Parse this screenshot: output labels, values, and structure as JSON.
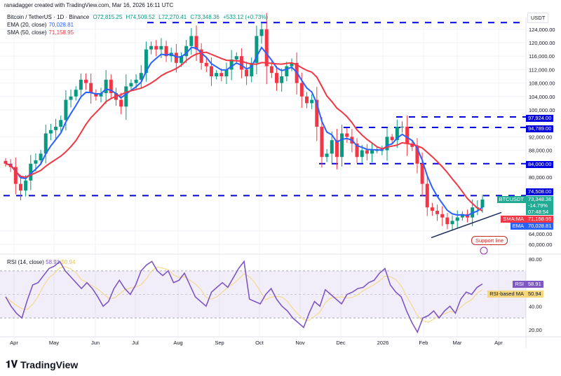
{
  "credit": "ranadagger created with TradingView.com, Mar 16, 2026 16:11 UTC",
  "symbol": {
    "title": "Bitcoin / TetherUS · 1D · Binance",
    "open": "O72,815.25",
    "high": "H74,509.52",
    "low": "L72,270.41",
    "close": "C73,348.36",
    "change": "+533.12 (+0.73%)"
  },
  "indicators": {
    "ema_label": "EMA (20, close)",
    "ema_value": "70,028.81",
    "sma_label": "SMA (50, close)",
    "sma_value": "71,158.95",
    "rsi_label": "RSI (14, close)",
    "rsi_value": "58.91",
    "rsi_ma_value": "50.94"
  },
  "axis": {
    "currency": "USDT",
    "price_labels": [
      "124,000.00",
      "120,000.00",
      "116,000.00",
      "112,000.00",
      "108,000.00",
      "104,000.00",
      "100,000.00",
      "92,000.00",
      "88,000.00",
      "80,000.00",
      "64,000.00",
      "60,000.00"
    ],
    "rsi_labels": [
      "80.00",
      "40.00",
      "20.00"
    ],
    "time_labels": [
      "Apr",
      "May",
      "Jun",
      "Jul",
      "Aug",
      "Sep",
      "Oct",
      "Nov",
      "Dec",
      "2026",
      "Feb",
      "Mar",
      "Apr"
    ]
  },
  "tags": {
    "l97924": "97,924.00",
    "l94789": "94,789.00",
    "l84000": "84,000.00",
    "l74508": "74,508.00",
    "ticker": "BTCUSDT",
    "price": "73,348.36",
    "pct": "-14.79%",
    "countdown": "07:48:54",
    "sma_tag": "SMA:MA",
    "sma_tag_val": "71,158.95",
    "ema_tag": "EMA",
    "ema_tag_val": "70,028.81",
    "rsi_tag": "RSI",
    "rsi_tag_val": "58.91",
    "rsima_tag": "RSI-based MA",
    "rsima_tag_val": "50.94"
  },
  "annotation": {
    "support": "Support line"
  },
  "logo": "TradingView",
  "colors": {
    "up": "#089981",
    "down": "#f23645",
    "ema": "#2962ff",
    "sma": "#f23645",
    "level": "#0000e0",
    "rsi": "#7e57c2",
    "rsi_ma": "#f5d67a",
    "support": "#1a2a5a"
  },
  "chart_data": {
    "type": "candlestick",
    "price_unit": "USDT",
    "closes_k": [
      84,
      83,
      78,
      76,
      79,
      84,
      85,
      87,
      93,
      94,
      95,
      97,
      103,
      104,
      106,
      109,
      108,
      105,
      104,
      105,
      109,
      105,
      103,
      101,
      107,
      108,
      109,
      111,
      118,
      119,
      118,
      119,
      116,
      117,
      114,
      116,
      119,
      122,
      118,
      114,
      113,
      110,
      111,
      110,
      112,
      115,
      116,
      112,
      110,
      114,
      122,
      124,
      113,
      111,
      108,
      110,
      113,
      114,
      108,
      104,
      102,
      103,
      95,
      86,
      87,
      91,
      86,
      93,
      92,
      90,
      86,
      88,
      87,
      88,
      88,
      88,
      92,
      91,
      95,
      95,
      90,
      89,
      84,
      78,
      71,
      70,
      69,
      68,
      66,
      67,
      68,
      69,
      68,
      71,
      71,
      73.348
    ],
    "horizontal_levels": [
      126000,
      97924,
      94789,
      84000,
      74508
    ],
    "support_line": {
      "from": 62000,
      "to": 69500
    },
    "rsi": [
      48,
      40,
      34,
      30,
      45,
      58,
      60,
      66,
      72,
      74,
      78,
      70,
      65,
      60,
      55,
      60,
      55,
      48,
      40,
      44,
      55,
      62,
      55,
      50,
      58,
      70,
      75,
      78,
      70,
      66,
      70,
      60,
      62,
      68,
      58,
      48,
      44,
      40,
      52,
      56,
      60,
      56,
      64,
      72,
      78,
      46,
      44,
      42,
      50,
      55,
      46,
      40,
      36,
      30,
      26,
      22,
      34,
      44,
      40,
      54,
      50,
      46,
      42,
      50,
      52,
      55,
      56,
      60,
      62,
      68,
      72,
      58,
      52,
      48,
      36,
      26,
      18,
      30,
      32,
      36,
      30,
      36,
      40,
      34,
      46,
      52,
      50,
      56,
      58.91
    ],
    "rsi_levels": [
      70,
      50,
      30
    ],
    "ylim": [
      56000,
      128000
    ]
  }
}
